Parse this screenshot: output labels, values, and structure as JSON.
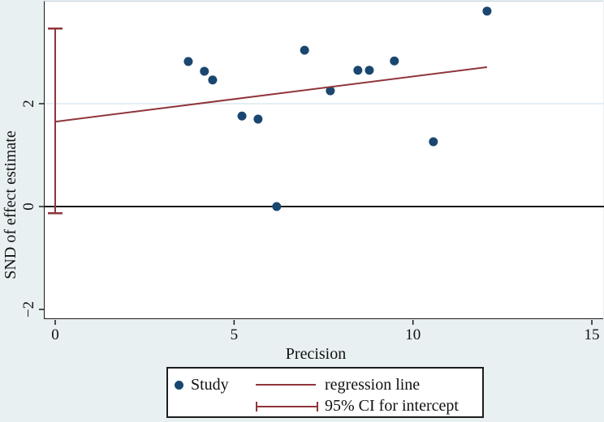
{
  "colors": {
    "bg": "#e9f0f2",
    "plot_bg": "#ffffff",
    "navy": "#1a476f",
    "maroon": "#90353b",
    "grid": "#dce9f2",
    "axis": "#1a1a1a",
    "border_light": "#c7d4db"
  },
  "chart_data": {
    "type": "scatter",
    "title": "",
    "xlabel": "Precision",
    "ylabel": "SND of effect estimate",
    "xlim": [
      -0.3,
      15.35
    ],
    "ylim": [
      -2.2,
      3.98
    ],
    "grid": "horizontal-at-2-only",
    "x_ticks": [
      {
        "value": 0,
        "label": "0"
      },
      {
        "value": 5,
        "label": "5"
      },
      {
        "value": 10,
        "label": "10"
      },
      {
        "value": 15,
        "label": "15"
      }
    ],
    "y_ticks": [
      {
        "value": 2,
        "label": "2"
      },
      {
        "value": 0,
        "label": "0"
      },
      {
        "value": -2,
        "label": "−2"
      }
    ],
    "gridlines_y": [
      2
    ],
    "zero_line_y": 0,
    "series": [
      {
        "name": "Study",
        "type": "scatter",
        "marker": "filled-circle",
        "color_key": "navy",
        "points": [
          [
            3.72,
            2.82
          ],
          [
            4.17,
            2.63
          ],
          [
            4.4,
            2.46
          ],
          [
            5.22,
            1.76
          ],
          [
            5.67,
            1.7
          ],
          [
            6.19,
            0.0
          ],
          [
            6.97,
            3.04
          ],
          [
            7.69,
            2.25
          ],
          [
            8.46,
            2.65
          ],
          [
            8.78,
            2.65
          ],
          [
            9.48,
            2.83
          ],
          [
            10.57,
            1.26
          ],
          [
            12.07,
            3.8
          ]
        ]
      },
      {
        "name": "regression line",
        "type": "line",
        "color_key": "maroon",
        "x": [
          0,
          12.07
        ],
        "y": [
          1.65,
          2.71
        ]
      },
      {
        "name": "95% CI for intercept",
        "type": "errorbar",
        "color_key": "maroon",
        "x": 0,
        "y_low": -0.13,
        "y_high": 3.46
      }
    ],
    "legend": {
      "position": "bottom-center",
      "entries": [
        {
          "label": "Study",
          "marker": "dot"
        },
        {
          "label": "regression line",
          "marker": "line"
        },
        {
          "label": "95% CI for intercept",
          "marker": "capped-line"
        }
      ]
    }
  }
}
